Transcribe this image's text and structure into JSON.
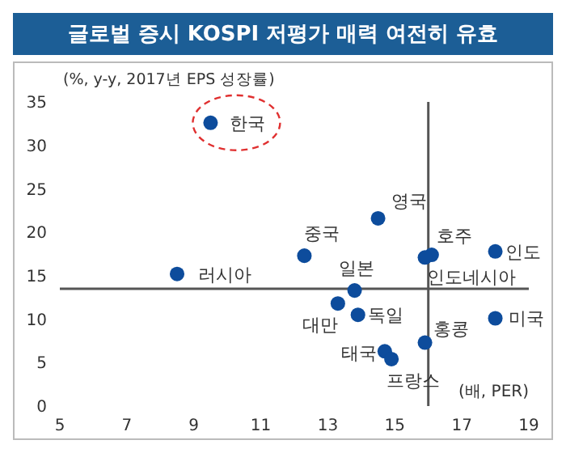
{
  "chart_data": {
    "type": "scatter",
    "title": "글로벌 증시 KOSPI 저평가 매력 여전히 유효",
    "ylabel": "(%, y-y, 2017년 EPS 성장률)",
    "xlabel": "(배, PER)",
    "xlim": [
      5,
      19
    ],
    "xticks": [
      5,
      7,
      9,
      11,
      13,
      15,
      17,
      19
    ],
    "ylim": [
      0,
      35
    ],
    "yticks": [
      0,
      5,
      10,
      15,
      20,
      25,
      30,
      35
    ],
    "marker": "circle",
    "series": [
      {
        "color": "#0d4c9c",
        "x": [
          9.5,
          14.5,
          12.3,
          16.1,
          15.9,
          18.0,
          8.5,
          13.8,
          13.3,
          13.9,
          18.0,
          15.9,
          14.7,
          14.9
        ],
        "values": [
          32.6,
          21.6,
          17.3,
          17.4,
          17.1,
          17.8,
          15.2,
          13.3,
          11.8,
          10.5,
          10.1,
          7.3,
          6.3,
          5.4
        ]
      }
    ],
    "annotations": [
      {
        "text": "한국",
        "x": 9.5,
        "y": 32.6
      },
      {
        "text": "영국",
        "x": 14.5,
        "y": 21.6
      },
      {
        "text": "중국",
        "x": 12.3,
        "y": 17.3
      },
      {
        "text": "호주",
        "x": 16.1,
        "y": 17.4
      },
      {
        "text": "인도네시아",
        "x": 15.9,
        "y": 17.1
      },
      {
        "text": "인도",
        "x": 18.0,
        "y": 17.8
      },
      {
        "text": "러시아",
        "x": 8.5,
        "y": 15.2
      },
      {
        "text": "일본",
        "x": 13.8,
        "y": 13.3
      },
      {
        "text": "대만",
        "x": 13.3,
        "y": 11.8
      },
      {
        "text": "독일",
        "x": 13.9,
        "y": 10.5
      },
      {
        "text": "미국",
        "x": 18.0,
        "y": 10.1
      },
      {
        "text": "홍콩",
        "x": 15.9,
        "y": 7.3
      },
      {
        "text": "태국",
        "x": 14.7,
        "y": 6.3
      },
      {
        "text": "프랑스",
        "x": 14.9,
        "y": 5.4
      }
    ],
    "ref_lines": [
      {
        "axis": "x",
        "value": 16,
        "color": "#555555"
      },
      {
        "axis": "y",
        "value": 13.5,
        "color": "#555555"
      }
    ]
  }
}
